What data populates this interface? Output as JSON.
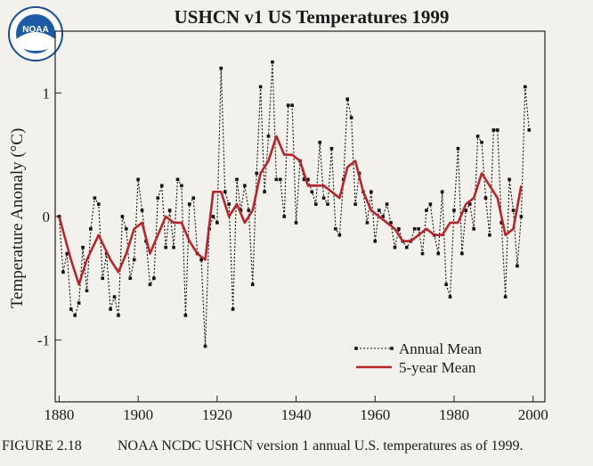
{
  "logo": "NOAA",
  "caption_label": "FIGURE 2.18",
  "caption": "NOAA NCDC USHCN version 1 annual U.S. temperatures as of 1999.",
  "chart_data": {
    "type": "line",
    "title": "USHCN v1 US Temperatures 1999",
    "ylabel": "Temperature Anonaly (°C)",
    "xlim": [
      1879,
      2003
    ],
    "ylim": [
      -1.5,
      1.5
    ],
    "xticks": [
      1880,
      1900,
      1920,
      1940,
      1960,
      1980,
      2000
    ],
    "yticks": [
      -1,
      0,
      1
    ],
    "legend": "lower right",
    "series": [
      {
        "name": "Annual Mean",
        "color": "#111111",
        "style": "dotted",
        "x": [
          1880,
          1881,
          1882,
          1883,
          1884,
          1885,
          1886,
          1887,
          1888,
          1889,
          1890,
          1891,
          1892,
          1893,
          1894,
          1895,
          1896,
          1897,
          1898,
          1899,
          1900,
          1901,
          1902,
          1903,
          1904,
          1905,
          1906,
          1907,
          1908,
          1909,
          1910,
          1911,
          1912,
          1913,
          1914,
          1915,
          1916,
          1917,
          1918,
          1919,
          1920,
          1921,
          1922,
          1923,
          1924,
          1925,
          1926,
          1927,
          1928,
          1929,
          1930,
          1931,
          1932,
          1933,
          1934,
          1935,
          1936,
          1937,
          1938,
          1939,
          1940,
          1941,
          1942,
          1943,
          1944,
          1945,
          1946,
          1947,
          1948,
          1949,
          1950,
          1951,
          1952,
          1953,
          1954,
          1955,
          1956,
          1957,
          1958,
          1959,
          1960,
          1961,
          1962,
          1963,
          1964,
          1965,
          1966,
          1967,
          1968,
          1969,
          1970,
          1971,
          1972,
          1973,
          1974,
          1975,
          1976,
          1977,
          1978,
          1979,
          1980,
          1981,
          1982,
          1983,
          1984,
          1985,
          1986,
          1987,
          1988,
          1989,
          1990,
          1991,
          1992,
          1993,
          1994,
          1995,
          1996,
          1997,
          1998,
          1999
        ],
        "values": [
          0.0,
          -0.45,
          -0.3,
          -0.75,
          -0.8,
          -0.7,
          -0.25,
          -0.6,
          -0.1,
          0.15,
          0.1,
          -0.5,
          -0.3,
          -0.75,
          -0.65,
          -0.8,
          0.0,
          -0.1,
          -0.5,
          -0.35,
          0.3,
          0.05,
          -0.2,
          -0.55,
          -0.5,
          0.15,
          0.25,
          -0.25,
          0.05,
          -0.25,
          0.3,
          0.25,
          -0.8,
          0.1,
          0.15,
          -0.3,
          -0.35,
          -1.05,
          -0.1,
          0.0,
          -0.05,
          1.2,
          0.2,
          0.1,
          -0.75,
          0.3,
          0.05,
          0.25,
          0.05,
          -0.55,
          0.35,
          1.05,
          0.2,
          0.65,
          1.25,
          0.3,
          0.3,
          0.0,
          0.9,
          0.9,
          -0.05,
          0.45,
          0.3,
          0.3,
          0.2,
          0.1,
          0.6,
          0.15,
          0.1,
          0.55,
          -0.1,
          -0.15,
          0.3,
          0.95,
          0.8,
          0.1,
          0.35,
          0.2,
          -0.05,
          0.2,
          -0.2,
          0.05,
          0.0,
          0.1,
          -0.05,
          -0.25,
          -0.1,
          -0.2,
          -0.25,
          -0.2,
          -0.1,
          -0.1,
          -0.3,
          0.05,
          0.1,
          -0.15,
          -0.3,
          0.2,
          -0.55,
          -0.65,
          0.05,
          0.55,
          -0.3,
          0.05,
          0.1,
          -0.1,
          0.65,
          0.6,
          0.15,
          -0.15,
          0.7,
          0.7,
          -0.05,
          -0.65,
          0.3,
          0.05,
          -0.4,
          0.0,
          1.05,
          0.7
        ]
      },
      {
        "name": "5-year Mean",
        "color": "#b5262a",
        "style": "solid",
        "x": [
          1880,
          1883,
          1885,
          1887,
          1890,
          1893,
          1895,
          1897,
          1899,
          1901,
          1903,
          1905,
          1907,
          1909,
          1911,
          1913,
          1915,
          1917,
          1919,
          1921,
          1923,
          1925,
          1927,
          1929,
          1931,
          1933,
          1935,
          1937,
          1939,
          1941,
          1943,
          1945,
          1947,
          1949,
          1951,
          1953,
          1955,
          1957,
          1959,
          1961,
          1963,
          1965,
          1967,
          1969,
          1971,
          1973,
          1975,
          1977,
          1979,
          1981,
          1983,
          1985,
          1987,
          1989,
          1991,
          1993,
          1995,
          1997
        ],
        "values": [
          0.0,
          -0.35,
          -0.55,
          -0.35,
          -0.15,
          -0.35,
          -0.45,
          -0.3,
          -0.1,
          -0.05,
          -0.3,
          -0.15,
          0.0,
          -0.05,
          -0.05,
          -0.2,
          -0.3,
          -0.35,
          0.2,
          0.2,
          0.0,
          0.1,
          -0.05,
          0.05,
          0.35,
          0.45,
          0.65,
          0.5,
          0.5,
          0.45,
          0.25,
          0.25,
          0.25,
          0.2,
          0.15,
          0.4,
          0.45,
          0.2,
          0.05,
          0.0,
          -0.05,
          -0.1,
          -0.2,
          -0.2,
          -0.15,
          -0.1,
          -0.15,
          -0.15,
          -0.05,
          -0.05,
          0.1,
          0.15,
          0.35,
          0.25,
          0.15,
          -0.15,
          -0.1,
          0.25
        ]
      }
    ]
  }
}
